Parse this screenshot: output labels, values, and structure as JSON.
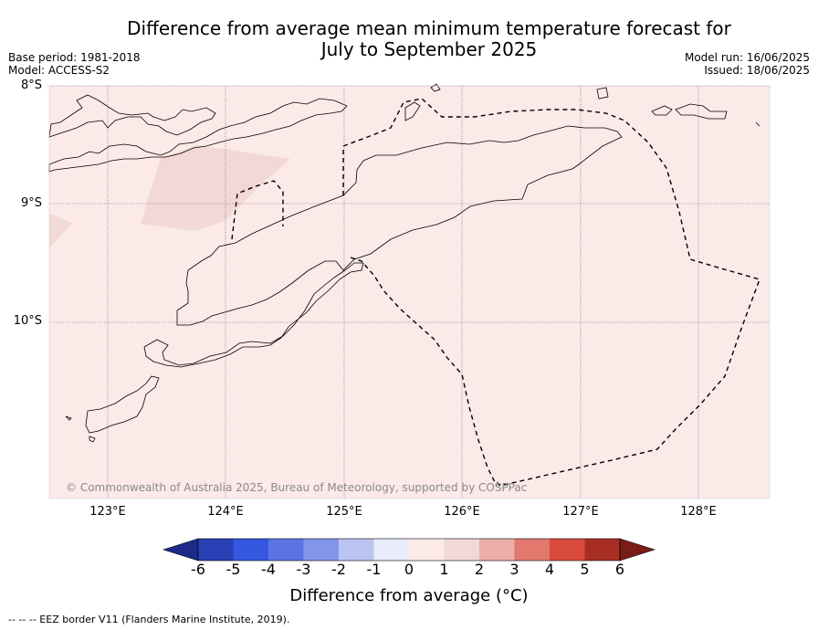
{
  "title_line1": "Difference from average mean minimum temperature forecast for",
  "title_line2": "July to September 2025",
  "base_period": "Base period: 1981-2018",
  "model": "Model: ACCESS-S2",
  "model_run": "Model run: 16/06/2025",
  "issued": "Issued: 18/06/2025",
  "lat_labels": [
    "8°S",
    "9°S",
    "10°S"
  ],
  "lon_labels": [
    "123°E",
    "124°E",
    "125°E",
    "126°E",
    "127°E",
    "128°E"
  ],
  "map": {
    "lat_range": [
      -11.5,
      -8.0
    ],
    "lon_range": [
      122.5,
      128.6
    ],
    "background_color": "#fbeae8",
    "warm_patch_color": "#f2d8d6"
  },
  "copyright": "© Commonwealth of Australia 2025, Bureau of Meteorology, supported by COSPPac",
  "colorbar": {
    "title": "Difference from average (°C)",
    "ticks": [
      "-6",
      "-5",
      "-4",
      "-3",
      "-2",
      "-1",
      "0",
      "1",
      "2",
      "3",
      "4",
      "5",
      "6"
    ],
    "colors": [
      "#1e2a8a",
      "#2840b4",
      "#3458e0",
      "#5a74e4",
      "#8296ea",
      "#bcc4f2",
      "#e8ecfb",
      "#fbeae8",
      "#f2d8d6",
      "#ecaea8",
      "#e2786e",
      "#d84a3c",
      "#a82e24",
      "#7a1c18"
    ]
  },
  "footnote": "-- -- -- EEZ border V11 (Flanders Marine Institute, 2019)."
}
